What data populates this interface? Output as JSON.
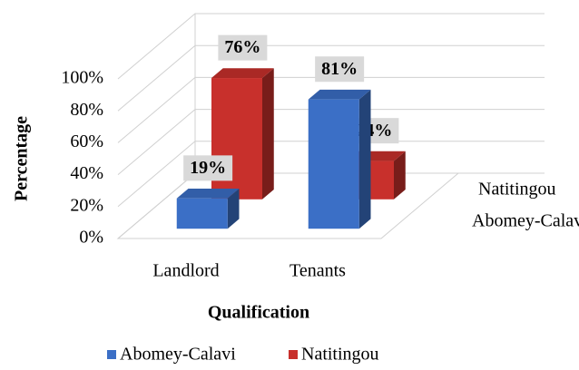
{
  "chart_data": {
    "type": "bar3d",
    "categories": [
      "Landlord",
      "Tenants"
    ],
    "series": [
      {
        "name": "Abomey-Calavi",
        "color": "#3b6fc6",
        "values": [
          19,
          81
        ],
        "value_labels": [
          "19%",
          "81%"
        ]
      },
      {
        "name": "Natitingou",
        "color": "#c8302c",
        "values": [
          76,
          24
        ],
        "value_labels": [
          "76%",
          "24%"
        ]
      }
    ],
    "xlabel": "Qualification",
    "ylabel": "Percentage",
    "ylim": [
      0,
      100
    ],
    "yticks": [
      {
        "value": 0,
        "label": "0%"
      },
      {
        "value": 20,
        "label": "20%"
      },
      {
        "value": 40,
        "label": "40%"
      },
      {
        "value": 60,
        "label": "60%"
      },
      {
        "value": 80,
        "label": "80%"
      },
      {
        "value": 100,
        "label": "100%"
      }
    ],
    "grid": true,
    "legend": "bottom"
  }
}
